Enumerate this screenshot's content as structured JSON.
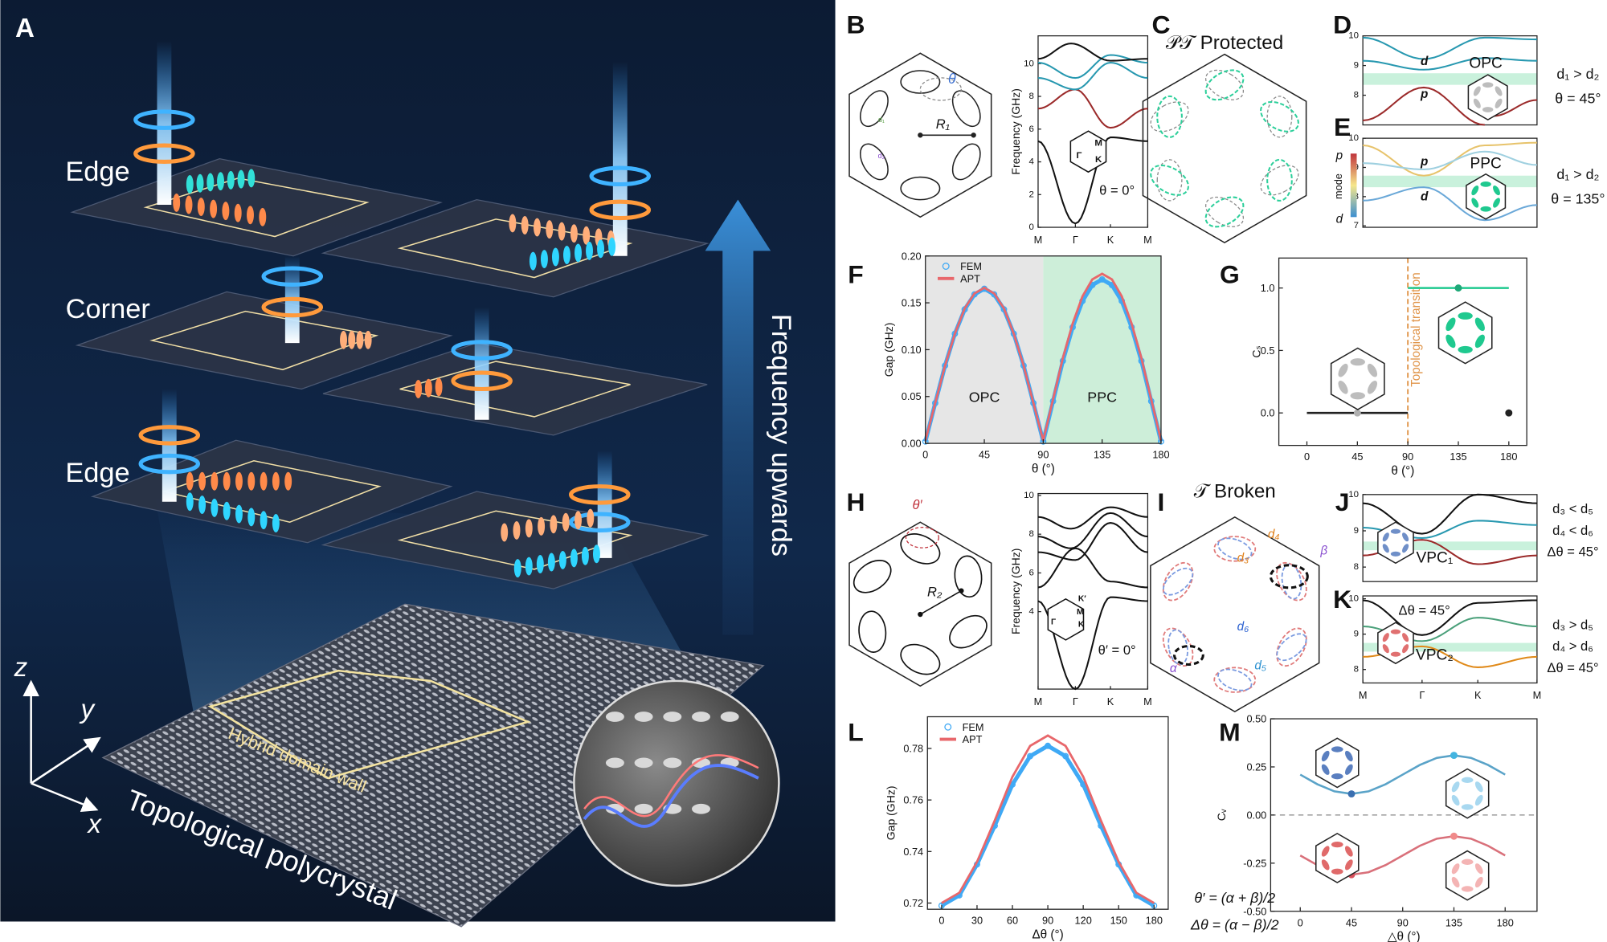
{
  "panel_a": {
    "label": "A",
    "layers": [
      "Edge",
      "Corner",
      "Edge"
    ],
    "arrow_label": "Frequency upwards",
    "wall_label": "Hybrid domain wall",
    "base_label": "Topological polycrystal",
    "axes": [
      "z",
      "y",
      "x"
    ]
  },
  "panel_b": {
    "label": "B",
    "cell": [
      "θ",
      "R₁",
      "d₁",
      "d₂"
    ],
    "bands": {
      "ylabel": "Frequency (GHz)",
      "ylim": [
        0,
        11.7
      ],
      "yticks": [
        0,
        2,
        4,
        6,
        8,
        10
      ],
      "kpath": [
        "M",
        "Γ",
        "K",
        "M"
      ],
      "inset": [
        "M",
        "Γ",
        "K"
      ],
      "note": "θ = 0°"
    }
  },
  "panel_c": {
    "label": "C",
    "title": "𝒫𝒯 Protected"
  },
  "panel_d": {
    "label": "D",
    "ylim": [
      7,
      10
    ],
    "yticks": [
      8,
      9,
      10
    ],
    "bands": [
      "d",
      "p"
    ],
    "phase": "OPC",
    "conditions": [
      "d₁ > d₂",
      "θ = 45°"
    ]
  },
  "panel_e": {
    "label": "E",
    "ylim": [
      6.95,
      10
    ],
    "yticks": [
      7,
      8,
      9,
      10
    ],
    "bands": [
      "p",
      "d"
    ],
    "phase": "PPC",
    "colorbar": [
      "p",
      "mode",
      "d"
    ],
    "conditions": [
      "d₁ > d₂",
      "θ = 135°"
    ]
  },
  "panel_f": {
    "label": "F",
    "chart": {
      "type": "line",
      "ylabel": "Gap (GHz)",
      "xlabel": "θ (°)",
      "xlim": [
        0,
        180
      ],
      "ylim": [
        0,
        0.2
      ],
      "xticks": [
        0,
        45,
        90,
        135,
        180
      ],
      "yticks": [
        {
          "value": 0,
          "label": "0.00"
        },
        0.05,
        {
          "value": 0.1,
          "label": "0.10"
        },
        0.15,
        {
          "value": 0.2,
          "label": "0.20"
        }
      ],
      "regions": [
        {
          "name": "OPC",
          "range": [
            0,
            90
          ],
          "color": "#e6e6e6"
        },
        {
          "name": "PPC",
          "range": [
            90,
            180
          ],
          "color": "#cdeed9"
        }
      ],
      "x": [
        0,
        7.5,
        15,
        22.5,
        30,
        37.5,
        45,
        52.5,
        60,
        67.5,
        75,
        82.5,
        90,
        97.5,
        105,
        112.5,
        120,
        127.5,
        135,
        142.5,
        150,
        157.5,
        165,
        172.5,
        180
      ],
      "series": [
        {
          "name": "FEM",
          "color": "#3fa9f5",
          "marker": "circle",
          "values": [
            0.002,
            0.043,
            0.083,
            0.117,
            0.143,
            0.159,
            0.165,
            0.159,
            0.143,
            0.117,
            0.083,
            0.043,
            0.002,
            0.045,
            0.088,
            0.124,
            0.152,
            0.169,
            0.175,
            0.169,
            0.152,
            0.124,
            0.088,
            0.045,
            0.002
          ]
        },
        {
          "name": "APT",
          "color": "#e8676b",
          "values": [
            0.003,
            0.043,
            0.083,
            0.117,
            0.144,
            0.16,
            0.166,
            0.16,
            0.144,
            0.117,
            0.083,
            0.043,
            0.003,
            0.047,
            0.091,
            0.128,
            0.157,
            0.175,
            0.181,
            0.175,
            0.157,
            0.128,
            0.091,
            0.047,
            0.003
          ]
        }
      ]
    }
  },
  "panel_g": {
    "label": "G",
    "chart": {
      "type": "line",
      "ylabel": "Cₛ",
      "xlabel": "θ (°)",
      "xlim": [
        -25,
        196
      ],
      "ylim": [
        -0.26,
        1.24
      ],
      "xticks": [
        0,
        45,
        90,
        135,
        180
      ],
      "yticks": [
        {
          "value": 0,
          "label": "0.0"
        },
        0.5,
        {
          "value": 1,
          "label": "1.0"
        }
      ],
      "transition": {
        "x": 90,
        "label": "Topological transition",
        "color": "#e0954a"
      },
      "series": [
        {
          "color": "#222222",
          "x": [
            0,
            90
          ],
          "values": [
            0,
            0
          ]
        },
        {
          "color": "#1fc98f",
          "x": [
            90,
            180
          ],
          "values": [
            1,
            1
          ]
        }
      ],
      "points": [
        {
          "x": 45,
          "y": 0,
          "color": "#b0b0b0"
        },
        {
          "x": 135,
          "y": 1,
          "color": "#1fa878"
        },
        {
          "x": 180,
          "y": 0,
          "color": "#222222"
        }
      ]
    }
  },
  "panel_h": {
    "label": "H",
    "cell": [
      "θ′",
      "R₂"
    ],
    "bands": {
      "ylabel": "Frequency (GHz)",
      "ylim": [
        0,
        10.1
      ],
      "yticks": [
        4,
        6,
        8,
        10
      ],
      "kpath": [
        "M",
        "Γ",
        "K",
        "M"
      ],
      "inset": [
        "K′",
        "M",
        "Γ",
        "K"
      ],
      "note": "θ′ = 0°"
    }
  },
  "panel_i": {
    "label": "I",
    "title": "𝒯 Broken",
    "cell": [
      "d₄",
      "d₃",
      "d₆",
      "d₅",
      "α",
      "β"
    ],
    "formulas": [
      "θ′ = (α + β)/2",
      "Δθ = (α − β)/2"
    ]
  },
  "panel_j": {
    "label": "J",
    "ylim": [
      7.6,
      10
    ],
    "yticks": [
      8,
      9,
      10
    ],
    "phase": "VPC₁",
    "conditions": [
      "d₃ < d₅",
      "d₄ < d₆",
      "Δθ = 45°"
    ]
  },
  "panel_k": {
    "label": "K",
    "ylim": [
      7.62,
      10.08
    ],
    "yticks": [
      8,
      9,
      10
    ],
    "kpath": [
      "M",
      "Γ",
      "K",
      "M"
    ],
    "note": "Δθ = 45°",
    "phase": "VPC₂",
    "conditions": [
      "d₃ > d₅",
      "d₄ > d₆",
      "Δθ = 45°"
    ]
  },
  "panel_l": {
    "label": "L",
    "chart": {
      "type": "line",
      "ylabel": "Gap (GHz)",
      "xlabel": "Δθ (°)",
      "xlim": [
        -12,
        192
      ],
      "ylim": [
        0.7176,
        0.7923
      ],
      "xticks": [
        0,
        30,
        60,
        90,
        120,
        150,
        180
      ],
      "yticks": [
        0.72,
        0.74,
        0.76,
        0.78
      ],
      "x": [
        0,
        15,
        30,
        45,
        60,
        75,
        90,
        105,
        120,
        135,
        150,
        165,
        180
      ],
      "series": [
        {
          "name": "FEM",
          "color": "#3fa9f5",
          "marker": "circle",
          "values": [
            0.719,
            0.723,
            0.735,
            0.75,
            0.766,
            0.777,
            0.781,
            0.777,
            0.766,
            0.75,
            0.735,
            0.723,
            0.719
          ]
        },
        {
          "name": "APT",
          "color": "#e8676b",
          "values": [
            0.72,
            0.724,
            0.736,
            0.752,
            0.769,
            0.781,
            0.785,
            0.781,
            0.769,
            0.752,
            0.736,
            0.724,
            0.72
          ]
        }
      ]
    }
  },
  "panel_m": {
    "label": "M",
    "chart": {
      "type": "line",
      "ylabel": "Cᵥ",
      "xlabel": "△θ (°)",
      "xlim": [
        -26,
        208
      ],
      "ylim": [
        -0.5,
        0.5
      ],
      "xticks": [
        0,
        45,
        90,
        135,
        180
      ],
      "yticks": [
        {
          "value": -0.5,
          "label": "-0.50"
        },
        -0.25,
        {
          "value": 0,
          "label": "0.00"
        },
        0.25,
        {
          "value": 0.5,
          "label": "0.50"
        }
      ],
      "zero_line": true,
      "x": [
        0,
        15,
        30,
        45,
        60,
        75,
        90,
        105,
        120,
        135,
        150,
        165,
        180
      ],
      "series": [
        {
          "color": "#5aa3c8",
          "values": [
            0.21,
            0.16,
            0.123,
            0.11,
            0.123,
            0.16,
            0.21,
            0.26,
            0.297,
            0.31,
            0.297,
            0.26,
            0.21
          ]
        },
        {
          "color": "#d9707a",
          "values": [
            -0.21,
            -0.26,
            -0.297,
            -0.31,
            -0.297,
            -0.26,
            -0.21,
            -0.16,
            -0.123,
            -0.11,
            -0.123,
            -0.16,
            -0.21
          ]
        }
      ],
      "points": [
        {
          "x": 45,
          "y": 0.11,
          "color": "#3a6fb0"
        },
        {
          "x": 135,
          "y": 0.31,
          "color": "#43b4e0"
        },
        {
          "x": 45,
          "y": -0.31,
          "color": "#d9505c"
        },
        {
          "x": 135,
          "y": -0.11,
          "color": "#f08a8a"
        }
      ]
    }
  }
}
